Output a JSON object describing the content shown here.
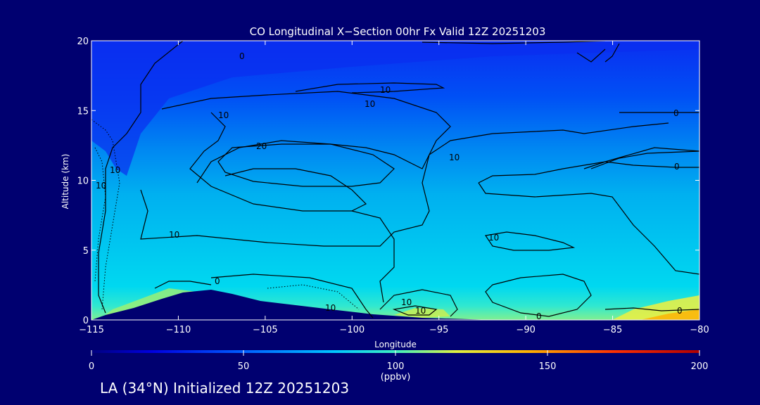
{
  "chart_data": {
    "type": "contour",
    "title": "CO Longitudinal X−Section 00hr  Fx Valid 12Z 20251203",
    "xlabel": "Longitude",
    "ylabel": "Altitude (km)",
    "xlim": [
      -115,
      -80
    ],
    "ylim": [
      0,
      20
    ],
    "x_ticks": [
      -115,
      -110,
      -105,
      -100,
      -95,
      -90,
      -85,
      -80
    ],
    "x_tick_labels": [
      "−115",
      "−110",
      "−105",
      "−100",
      "−95",
      "−90",
      "−85",
      "−80"
    ],
    "y_ticks": [
      0,
      5,
      10,
      15,
      20
    ],
    "y_tick_labels": [
      "0",
      "5",
      "10",
      "15",
      "20"
    ],
    "contour_labels": [
      "0",
      "10",
      "10",
      "10",
      "20",
      "10",
      "10",
      "10",
      "0",
      "0",
      "10",
      "10",
      "10",
      "0",
      "0",
      "0",
      "10",
      "10"
    ],
    "colorbar": {
      "range": [
        0,
        200
      ],
      "ticks": [
        0,
        50,
        100,
        150,
        200
      ],
      "tick_labels": [
        "0",
        "50",
        "100",
        "150",
        "200"
      ],
      "unit": "(ppbv)"
    },
    "field_bands": [
      {
        "alt_range": [
          16,
          20
        ],
        "co_ppbv": 40
      },
      {
        "alt_range": [
          12,
          16
        ],
        "co_ppbv": 55
      },
      {
        "alt_range": [
          8,
          12
        ],
        "co_ppbv": 65
      },
      {
        "alt_range": [
          4,
          8
        ],
        "co_ppbv": 75
      },
      {
        "alt_range": [
          1,
          4
        ],
        "co_ppbv": 82
      },
      {
        "alt_range": [
          0,
          1
        ],
        "co_ppbv": 100
      }
    ]
  },
  "footer": {
    "text": "LA (34°N) Initialized 12Z 20251203"
  }
}
